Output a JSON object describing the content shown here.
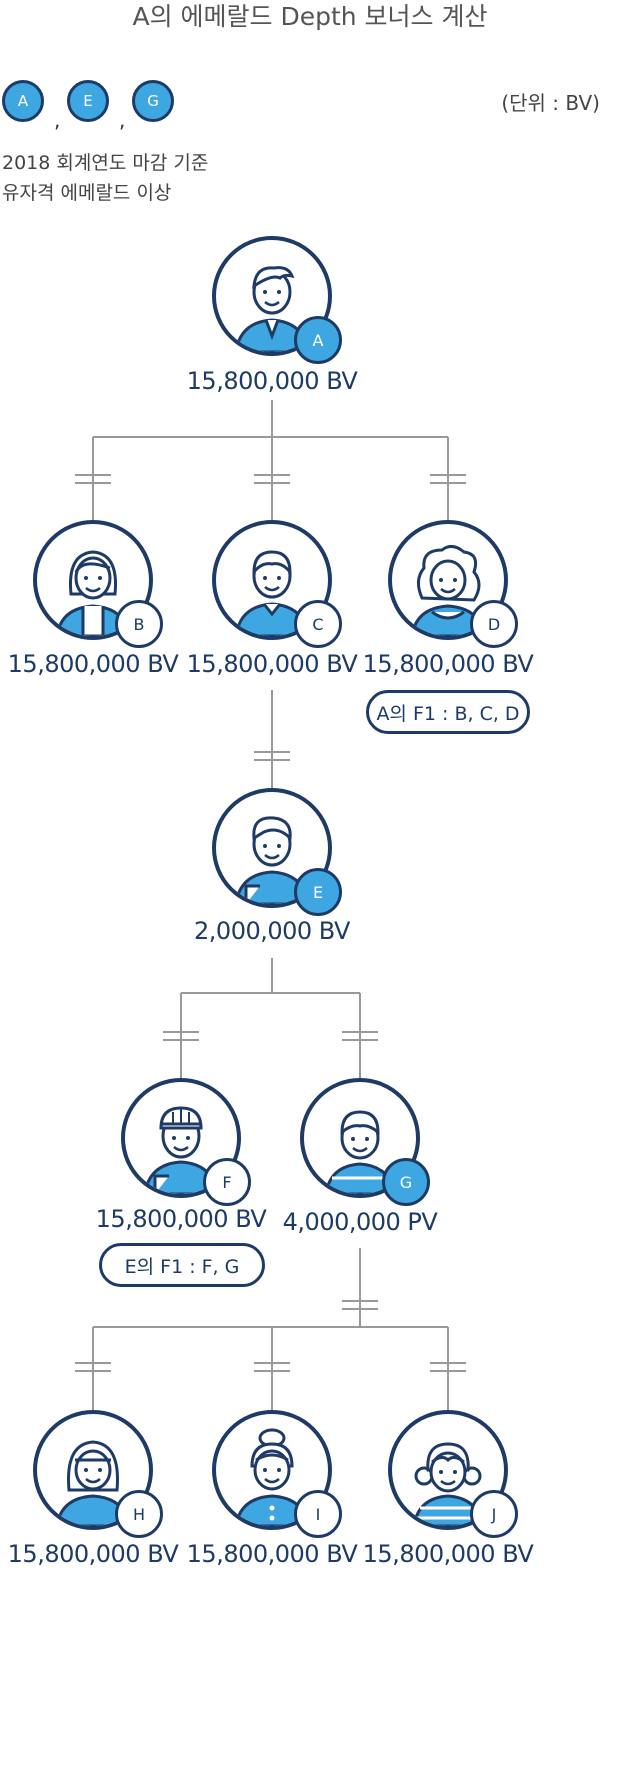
{
  "title": "A의 에메랄드 Depth 보너스 계산",
  "unit": "(단위 : BV)",
  "legend": {
    "chips": [
      "A",
      "E",
      "G"
    ],
    "separator": ",",
    "note_line1": "2018 회계연도 마감 기준",
    "note_line2": "유자격 에메랄드 이상"
  },
  "nodes": [
    {
      "id": "A",
      "value": "15,800,000 BV",
      "highlight": true,
      "avatar": "businessman-icon"
    },
    {
      "id": "B",
      "value": "15,800,000 BV",
      "highlight": false,
      "avatar": "woman-short-hair-icon"
    },
    {
      "id": "C",
      "value": "15,800,000 BV",
      "highlight": false,
      "avatar": "man-icon"
    },
    {
      "id": "D",
      "value": "15,800,000 BV",
      "highlight": false,
      "avatar": "woman-curly-hair-icon"
    },
    {
      "id": "E",
      "value": "2,000,000 BV",
      "highlight": true,
      "avatar": "man-side-part-icon"
    },
    {
      "id": "F",
      "value": "15,800,000 BV",
      "highlight": false,
      "avatar": "man-cap-icon"
    },
    {
      "id": "G",
      "value": "4,000,000 PV",
      "highlight": true,
      "avatar": "boy-icon"
    },
    {
      "id": "H",
      "value": "15,800,000 BV",
      "highlight": false,
      "avatar": "woman-bob-icon"
    },
    {
      "id": "I",
      "value": "15,800,000 BV",
      "highlight": false,
      "avatar": "woman-bun-icon"
    },
    {
      "id": "J",
      "value": "15,800,000 BV",
      "highlight": false,
      "avatar": "girl-striped-icon"
    }
  ],
  "f1_labels": {
    "A": "A의 F1 : B, C, D",
    "E": "E의 F1 : F, G"
  },
  "colors": {
    "navy": "#1e3a66",
    "accent": "#3ea6e0",
    "line": "#999999",
    "text": "#444444"
  }
}
